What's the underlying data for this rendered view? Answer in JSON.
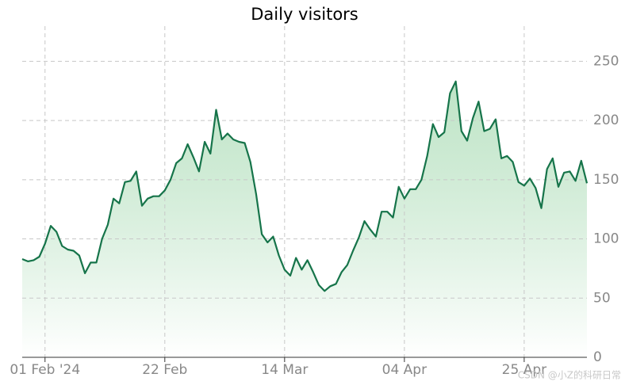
{
  "chart_data": {
    "type": "area",
    "title": "Daily visitors",
    "watermark": "CSDN @小Z的科研日常",
    "x": [
      "2024-01-28",
      "2024-01-29",
      "2024-01-30",
      "2024-01-31",
      "2024-02-01",
      "2024-02-02",
      "2024-02-03",
      "2024-02-04",
      "2024-02-05",
      "2024-02-06",
      "2024-02-07",
      "2024-02-08",
      "2024-02-09",
      "2024-02-10",
      "2024-02-11",
      "2024-02-12",
      "2024-02-13",
      "2024-02-14",
      "2024-02-15",
      "2024-02-16",
      "2024-02-17",
      "2024-02-18",
      "2024-02-19",
      "2024-02-20",
      "2024-02-21",
      "2024-02-22",
      "2024-02-23",
      "2024-02-24",
      "2024-02-25",
      "2024-02-26",
      "2024-02-27",
      "2024-02-28",
      "2024-02-29",
      "2024-03-01",
      "2024-03-02",
      "2024-03-03",
      "2024-03-04",
      "2024-03-05",
      "2024-03-06",
      "2024-03-07",
      "2024-03-08",
      "2024-03-09",
      "2024-03-10",
      "2024-03-11",
      "2024-03-12",
      "2024-03-13",
      "2024-03-14",
      "2024-03-15",
      "2024-03-16",
      "2024-03-17",
      "2024-03-18",
      "2024-03-19",
      "2024-03-20",
      "2024-03-21",
      "2024-03-22",
      "2024-03-23",
      "2024-03-24",
      "2024-03-25",
      "2024-03-26",
      "2024-03-27",
      "2024-03-28",
      "2024-03-29",
      "2024-03-30",
      "2024-03-31",
      "2024-04-01",
      "2024-04-02",
      "2024-04-03",
      "2024-04-04",
      "2024-04-05",
      "2024-04-06",
      "2024-04-07",
      "2024-04-08",
      "2024-04-09",
      "2024-04-10",
      "2024-04-11",
      "2024-04-12",
      "2024-04-13",
      "2024-04-14",
      "2024-04-15",
      "2024-04-16",
      "2024-04-17",
      "2024-04-18",
      "2024-04-19",
      "2024-04-20",
      "2024-04-21",
      "2024-04-22",
      "2024-04-23",
      "2024-04-24",
      "2024-04-25",
      "2024-04-26",
      "2024-04-27",
      "2024-04-28",
      "2024-04-29",
      "2024-04-30",
      "2024-05-01",
      "2024-05-02",
      "2024-05-03",
      "2024-05-04",
      "2024-05-05",
      "2024-05-06"
    ],
    "series": [
      {
        "name": "Daily visitors",
        "color": "#16744a",
        "values": [
          83,
          81,
          82,
          85,
          96,
          111,
          106,
          94,
          91,
          90,
          86,
          71,
          80,
          80,
          100,
          112,
          134,
          130,
          148,
          149,
          157,
          128,
          134,
          136,
          136,
          141,
          150,
          164,
          168,
          180,
          169,
          157,
          182,
          172,
          209,
          184,
          189,
          184,
          182,
          181,
          165,
          138,
          104,
          97,
          102,
          86,
          74,
          69,
          84,
          74,
          82,
          72,
          61,
          56,
          60,
          62,
          72,
          78,
          90,
          101,
          115,
          108,
          102,
          123,
          123,
          118,
          144,
          134,
          142,
          142,
          150,
          170,
          197,
          186,
          190,
          223,
          233,
          191,
          183,
          202,
          216,
          191,
          193,
          201,
          168,
          170,
          165,
          148,
          145,
          151,
          143,
          126,
          159,
          168,
          144,
          156,
          157,
          149,
          166,
          147
        ]
      }
    ],
    "xlim": [
      "2024-01-28",
      "2024-05-06"
    ],
    "xticks": [
      {
        "value": "2024-02-01",
        "label": "01 Feb '24"
      },
      {
        "value": "2024-02-22",
        "label": "22 Feb"
      },
      {
        "value": "2024-03-14",
        "label": "14 Mar"
      },
      {
        "value": "2024-04-04",
        "label": "04 Apr"
      },
      {
        "value": "2024-04-25",
        "label": "25 Apr"
      }
    ],
    "ylim": [
      0,
      275
    ],
    "yticks": [
      0,
      50,
      100,
      150,
      200,
      250
    ],
    "grid": true,
    "fill_color": "#a9dbb4"
  }
}
